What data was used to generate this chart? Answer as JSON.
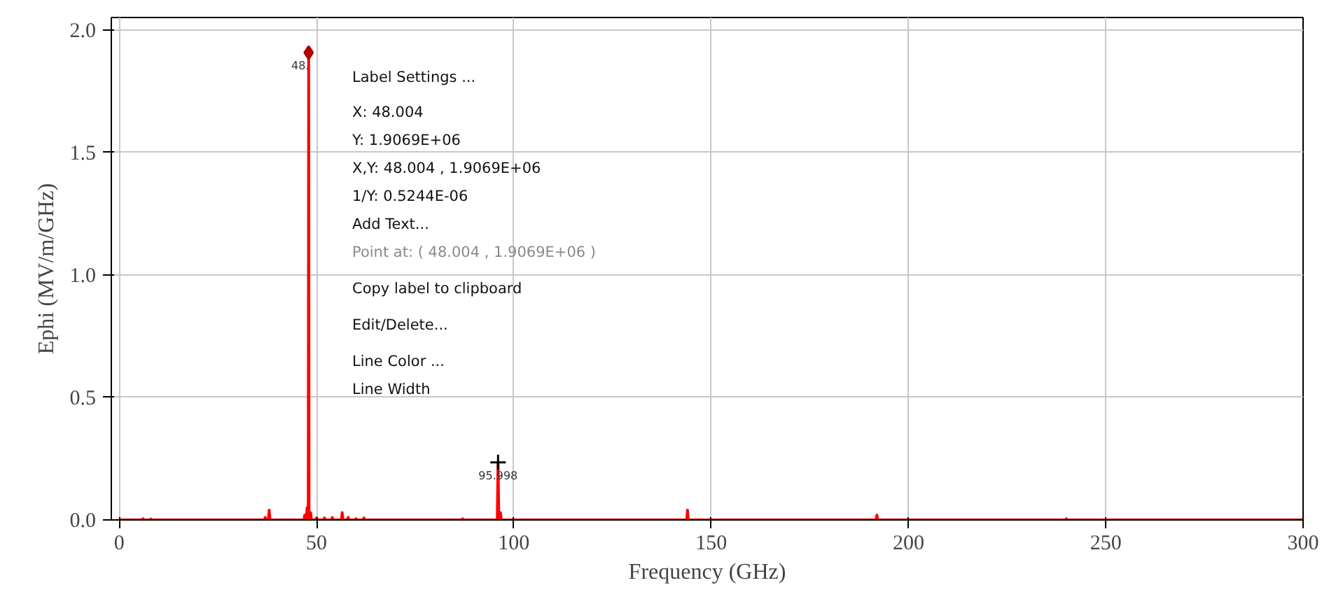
{
  "chart_data": {
    "type": "line",
    "xlabel": "Frequency (GHz)",
    "ylabel": "Ephi (MV/m/GHz)",
    "xlim": [
      -2,
      300
    ],
    "ylim": [
      0,
      2.05
    ],
    "xticks": [
      0,
      50,
      100,
      150,
      200,
      250,
      300
    ],
    "yticks": [
      {
        "value": 0,
        "label": "0.0"
      },
      {
        "value": 0.5,
        "label": "0.5"
      },
      {
        "value": 1,
        "label": "1.0"
      },
      {
        "value": 1.5,
        "label": "1.5"
      },
      {
        "value": 2,
        "label": "2.0"
      }
    ],
    "grid": true,
    "line_style": "solid",
    "marker": "none",
    "series": [
      {
        "color": "#ff0000",
        "x": [
          0,
          5.8,
          6,
          6.2,
          7.8,
          8,
          8.2,
          36.8,
          37,
          37.2,
          37.8,
          38,
          38.2,
          46.8,
          47,
          47.2,
          47.4,
          47.6,
          47.8,
          47.9,
          48.004,
          48.1,
          48.3,
          48.5,
          48.7,
          49.8,
          50,
          50.2,
          51.8,
          52,
          52.2,
          53.8,
          54,
          54.2,
          56.3,
          56.5,
          56.7,
          57.8,
          58,
          58.2,
          59.8,
          60,
          60.2,
          61.8,
          62,
          62.2,
          86.8,
          87,
          87.2,
          95.8,
          95.998,
          96.2,
          96.4,
          96.6,
          96.8,
          143.8,
          144,
          144.2,
          191.8,
          192,
          192.2,
          239.8,
          240,
          240.2,
          300
        ],
        "values": [
          0,
          0,
          0.005,
          0,
          0,
          0.004,
          0,
          0,
          0.01,
          0,
          0,
          0.04,
          0,
          0,
          0.02,
          0,
          0,
          0.05,
          0,
          0,
          1.9069,
          0,
          0,
          0.03,
          0,
          0,
          0.008,
          0,
          0,
          0.008,
          0,
          0,
          0.01,
          0,
          0,
          0.03,
          0,
          0,
          0.01,
          0,
          0,
          0.005,
          0,
          0,
          0.008,
          0,
          0,
          0.005,
          0,
          0,
          0.235,
          0,
          0,
          0.03,
          0,
          0,
          0.04,
          0,
          0,
          0.02,
          0,
          0,
          0.005,
          0,
          0
        ]
      }
    ],
    "annotations": [
      {
        "text": "48.",
        "x": 48.004,
        "y": 1.9069
      },
      {
        "text": "95.998",
        "x": 95.998,
        "y": 0.235
      },
      "Label Settings ...",
      "X:     48.004",
      "Y:     1.9069E+06",
      "X,Y:   48.004      ,  1.9069E+06",
      "1/Y:     0.5244E-06",
      "Add Text...",
      "Point at:  (  48.004      ,  1.9069E+06  )",
      "Copy label to clipboard",
      "Edit/Delete...",
      "Line Color ...",
      "Line Width"
    ]
  }
}
